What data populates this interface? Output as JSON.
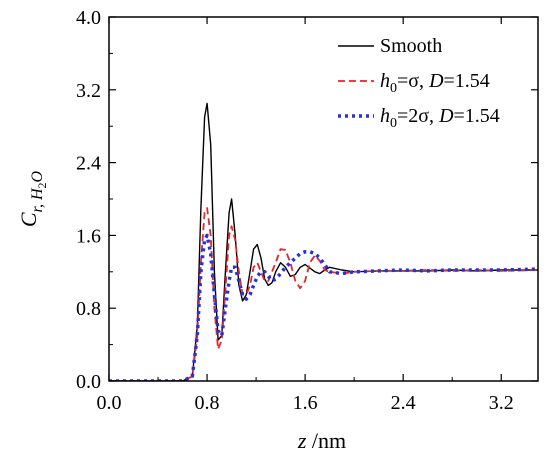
{
  "chart_data": {
    "type": "line",
    "xlabel": {
      "italic": "z",
      "rest": " /nm"
    },
    "ylabel": {
      "main": "C",
      "sub": "r, H",
      "sub2": "2",
      "tail": "O"
    },
    "xlim": [
      0.0,
      3.5
    ],
    "ylim": [
      0.0,
      4.0
    ],
    "xticks": [
      "0.0",
      "0.8",
      "1.6",
      "2.4",
      "3.2"
    ],
    "xtick_values": [
      0.0,
      0.8,
      1.6,
      2.4,
      3.2
    ],
    "yticks": [
      "0.0",
      "0.8",
      "1.6",
      "2.4",
      "3.2",
      "4.0"
    ],
    "ytick_values": [
      0.0,
      0.8,
      1.6,
      2.4,
      3.2,
      4.0
    ],
    "grid": false,
    "legend_position": "top-right",
    "series": [
      {
        "name": "Smooth",
        "legend": {
          "pre_italic": "",
          "pre_sub": "",
          "text": "Smooth"
        },
        "color": "#000000",
        "dash": "solid",
        "x": [
          0.0,
          0.6,
          0.68,
          0.72,
          0.75,
          0.78,
          0.8,
          0.83,
          0.86,
          0.89,
          0.92,
          0.95,
          0.98,
          1.0,
          1.03,
          1.06,
          1.09,
          1.12,
          1.15,
          1.18,
          1.21,
          1.24,
          1.27,
          1.3,
          1.33,
          1.36,
          1.4,
          1.44,
          1.48,
          1.52,
          1.56,
          1.6,
          1.64,
          1.68,
          1.72,
          1.76,
          1.8,
          1.9,
          2.0,
          2.2,
          2.4,
          2.6,
          2.8,
          3.0,
          3.2,
          3.5
        ],
        "y": [
          0.0,
          0.0,
          0.05,
          0.6,
          1.9,
          2.9,
          3.05,
          2.6,
          1.2,
          0.45,
          0.5,
          1.2,
          1.85,
          2.0,
          1.6,
          1.05,
          0.88,
          0.95,
          1.2,
          1.45,
          1.5,
          1.35,
          1.12,
          1.05,
          1.08,
          1.2,
          1.3,
          1.25,
          1.15,
          1.17,
          1.25,
          1.28,
          1.24,
          1.2,
          1.18,
          1.22,
          1.25,
          1.22,
          1.2,
          1.21,
          1.21,
          1.21,
          1.22,
          1.21,
          1.22,
          1.22
        ]
      },
      {
        "name": "h0=σ, D=1.54",
        "legend": {
          "pre_italic": "h",
          "pre_sub": "0",
          "text": "=σ, ",
          "d_italic": "D",
          "d_text": "=1.54"
        },
        "color": "#e8232a",
        "dash": "dashed",
        "x": [
          0.0,
          0.6,
          0.68,
          0.72,
          0.75,
          0.78,
          0.8,
          0.83,
          0.86,
          0.89,
          0.92,
          0.95,
          0.98,
          1.0,
          1.03,
          1.06,
          1.09,
          1.12,
          1.15,
          1.18,
          1.21,
          1.24,
          1.27,
          1.3,
          1.33,
          1.36,
          1.4,
          1.44,
          1.48,
          1.52,
          1.56,
          1.6,
          1.64,
          1.68,
          1.72,
          1.76,
          1.8,
          1.9,
          2.0,
          2.2,
          2.4,
          2.6,
          2.8,
          3.0,
          3.2,
          3.5
        ],
        "y": [
          0.0,
          0.0,
          0.05,
          0.5,
          1.3,
          1.85,
          1.9,
          1.6,
          0.8,
          0.35,
          0.45,
          1.0,
          1.6,
          1.7,
          1.55,
          1.2,
          0.95,
          0.95,
          1.05,
          1.25,
          1.3,
          1.2,
          1.1,
          1.1,
          1.2,
          1.3,
          1.45,
          1.44,
          1.3,
          1.1,
          1.02,
          1.1,
          1.3,
          1.38,
          1.32,
          1.22,
          1.2,
          1.18,
          1.2,
          1.21,
          1.21,
          1.22,
          1.21,
          1.22,
          1.21,
          1.22
        ]
      },
      {
        "name": "h0=2σ, D=1.54",
        "legend": {
          "pre_italic": "h",
          "pre_sub": "0",
          "text": "=2σ, ",
          "d_italic": "D",
          "d_text": "=1.54"
        },
        "color": "#2233dd",
        "dash": "dotted",
        "x": [
          0.0,
          0.6,
          0.68,
          0.72,
          0.75,
          0.78,
          0.8,
          0.83,
          0.86,
          0.89,
          0.92,
          0.95,
          0.98,
          1.0,
          1.03,
          1.06,
          1.09,
          1.12,
          1.15,
          1.18,
          1.21,
          1.24,
          1.27,
          1.3,
          1.33,
          1.36,
          1.4,
          1.44,
          1.48,
          1.52,
          1.56,
          1.6,
          1.64,
          1.68,
          1.72,
          1.76,
          1.8,
          1.9,
          2.0,
          2.2,
          2.4,
          2.6,
          2.8,
          3.0,
          3.2,
          3.5
        ],
        "y": [
          0.0,
          0.0,
          0.05,
          0.5,
          1.2,
          1.55,
          1.6,
          1.4,
          0.95,
          0.55,
          0.5,
          0.8,
          1.1,
          1.25,
          1.25,
          1.1,
          0.95,
          0.9,
          0.95,
          1.05,
          1.15,
          1.2,
          1.2,
          1.15,
          1.1,
          1.12,
          1.18,
          1.25,
          1.3,
          1.35,
          1.4,
          1.42,
          1.42,
          1.4,
          1.35,
          1.28,
          1.2,
          1.18,
          1.2,
          1.21,
          1.22,
          1.21,
          1.22,
          1.22,
          1.22,
          1.23
        ]
      }
    ]
  }
}
